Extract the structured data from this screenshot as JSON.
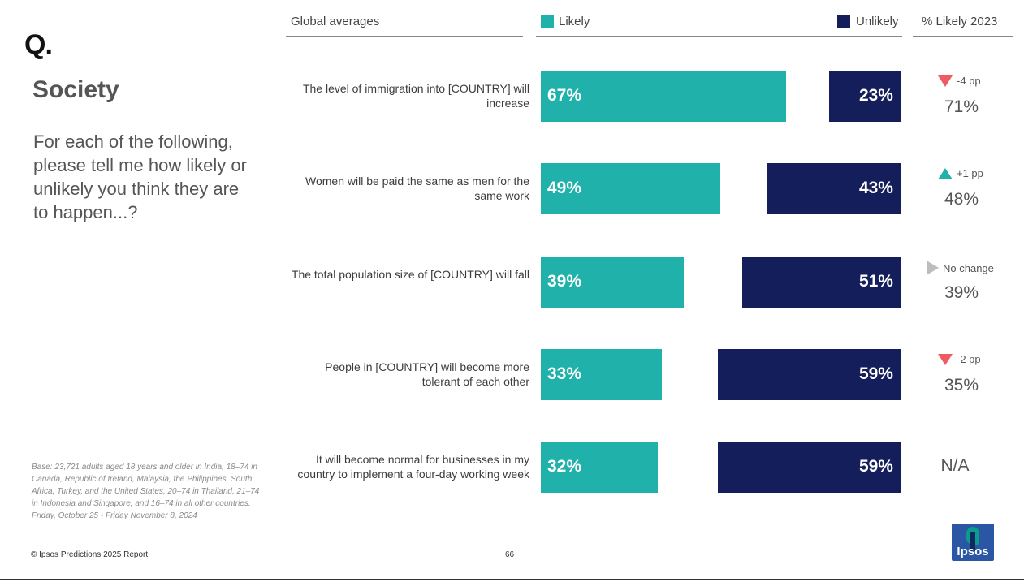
{
  "header": {
    "logo_mark": "Q.",
    "col_global": "Global averages",
    "col_likely": "Likely",
    "col_unlikely": "Unlikely",
    "col_pct": "% Likely 2023"
  },
  "left": {
    "title": "Society",
    "question": "For each of the following, please tell me how likely or unlikely you think they are to happen...?",
    "base_note": "Base: 23,721 adults aged 18 years and older in India, 18–74 in Canada, Republic of Ireland, Malaysia, the Philippines, South Africa, Turkey, and the United States, 20–74 in Thailand, 21–74 in Indonesia and Singapore, and 16–74 in all other countries. Friday, October 25 - Friday November 8, 2024"
  },
  "footer": {
    "copyright": "© Ipsos Predictions 2025 Report",
    "page": "66",
    "logo_text": "Ipsos"
  },
  "colors": {
    "likely": "#20b2aa",
    "unlikely": "#141e5a",
    "down": "#ef5b63",
    "up": "#20b2aa",
    "flat": "#bdbdbd"
  },
  "chart_data": {
    "type": "bar",
    "title": "Global averages",
    "categories": [
      "The level of immigration into [COUNTRY] will increase",
      "Women will be paid the same as men for the same work",
      "The total population size of [COUNTRY] will fall",
      "People in [COUNTRY] will become more tolerant of each other",
      "It will become normal for businesses in my country to implement a four-day working week"
    ],
    "series": [
      {
        "name": "Likely",
        "values": [
          67,
          49,
          39,
          33,
          32
        ],
        "labels": [
          "67%",
          "49%",
          "39%",
          "33%",
          "32%"
        ]
      },
      {
        "name": "Unlikely",
        "values": [
          23,
          43,
          51,
          59,
          59
        ],
        "labels": [
          "23%",
          "43%",
          "51%",
          "59%",
          "59%"
        ]
      }
    ],
    "comparison": {
      "header": "% Likely 2023",
      "changes": [
        {
          "direction": "down",
          "text": "-4 pp"
        },
        {
          "direction": "up",
          "text": "+1 pp"
        },
        {
          "direction": "flat",
          "text": "No change"
        },
        {
          "direction": "down",
          "text": "-2 pp"
        },
        {
          "direction": "none",
          "text": ""
        }
      ],
      "values": [
        "71%",
        "48%",
        "39%",
        "35%",
        "N/A"
      ]
    },
    "xlim": [
      0,
      100
    ],
    "legend": "top"
  }
}
